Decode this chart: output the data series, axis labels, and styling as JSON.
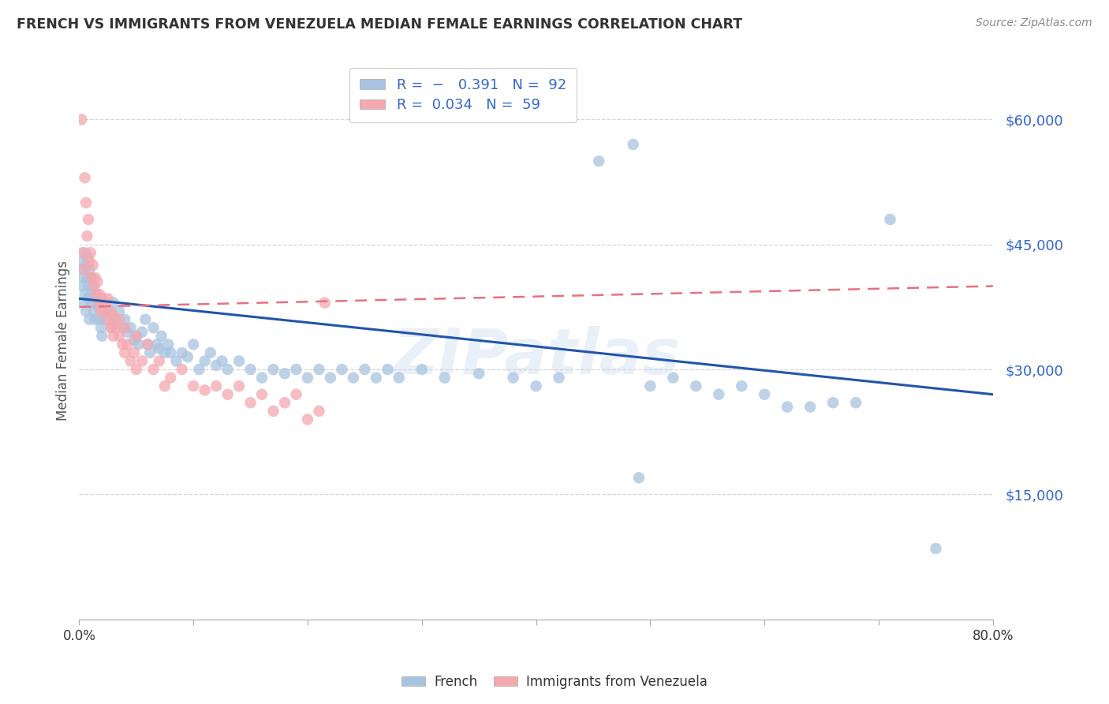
{
  "title": "FRENCH VS IMMIGRANTS FROM VENEZUELA MEDIAN FEMALE EARNINGS CORRELATION CHART",
  "source": "Source: ZipAtlas.com",
  "ylabel": "Median Female Earnings",
  "watermark": "ZIPatlas",
  "ytick_labels": [
    "$15,000",
    "$30,000",
    "$45,000",
    "$60,000"
  ],
  "ytick_values": [
    15000,
    30000,
    45000,
    60000
  ],
  "ymin": 0,
  "ymax": 67000,
  "xmin": 0.0,
  "xmax": 0.8,
  "blue_color": "#A8C4E0",
  "pink_color": "#F4A8B0",
  "line_blue": "#2255AA",
  "line_pink": "#E87080",
  "blue_scatter": [
    [
      0.002,
      42000
    ],
    [
      0.003,
      40000
    ],
    [
      0.003,
      43000
    ],
    [
      0.004,
      41000
    ],
    [
      0.004,
      38000
    ],
    [
      0.005,
      44000
    ],
    [
      0.005,
      39000
    ],
    [
      0.006,
      42500
    ],
    [
      0.006,
      37000
    ],
    [
      0.007,
      41000
    ],
    [
      0.007,
      43500
    ],
    [
      0.008,
      40000
    ],
    [
      0.008,
      38500
    ],
    [
      0.009,
      42000
    ],
    [
      0.009,
      36000
    ],
    [
      0.01,
      41000
    ],
    [
      0.01,
      39000
    ],
    [
      0.011,
      38000
    ],
    [
      0.012,
      40000
    ],
    [
      0.013,
      37000
    ],
    [
      0.014,
      36000
    ],
    [
      0.015,
      39000
    ],
    [
      0.016,
      38000
    ],
    [
      0.017,
      37500
    ],
    [
      0.018,
      36000
    ],
    [
      0.019,
      35000
    ],
    [
      0.02,
      34000
    ],
    [
      0.022,
      36000
    ],
    [
      0.025,
      37000
    ],
    [
      0.028,
      35000
    ],
    [
      0.03,
      38000
    ],
    [
      0.032,
      36000
    ],
    [
      0.035,
      37000
    ],
    [
      0.038,
      35000
    ],
    [
      0.04,
      36000
    ],
    [
      0.042,
      34500
    ],
    [
      0.045,
      35000
    ],
    [
      0.048,
      33500
    ],
    [
      0.05,
      34000
    ],
    [
      0.052,
      33000
    ],
    [
      0.055,
      34500
    ],
    [
      0.058,
      36000
    ],
    [
      0.06,
      33000
    ],
    [
      0.062,
      32000
    ],
    [
      0.065,
      35000
    ],
    [
      0.068,
      33000
    ],
    [
      0.07,
      32500
    ],
    [
      0.072,
      34000
    ],
    [
      0.075,
      32000
    ],
    [
      0.078,
      33000
    ],
    [
      0.08,
      32000
    ],
    [
      0.085,
      31000
    ],
    [
      0.09,
      32000
    ],
    [
      0.095,
      31500
    ],
    [
      0.1,
      33000
    ],
    [
      0.105,
      30000
    ],
    [
      0.11,
      31000
    ],
    [
      0.115,
      32000
    ],
    [
      0.12,
      30500
    ],
    [
      0.125,
      31000
    ],
    [
      0.13,
      30000
    ],
    [
      0.14,
      31000
    ],
    [
      0.15,
      30000
    ],
    [
      0.16,
      29000
    ],
    [
      0.17,
      30000
    ],
    [
      0.18,
      29500
    ],
    [
      0.19,
      30000
    ],
    [
      0.2,
      29000
    ],
    [
      0.21,
      30000
    ],
    [
      0.22,
      29000
    ],
    [
      0.23,
      30000
    ],
    [
      0.24,
      29000
    ],
    [
      0.25,
      30000
    ],
    [
      0.26,
      29000
    ],
    [
      0.27,
      30000
    ],
    [
      0.28,
      29000
    ],
    [
      0.3,
      30000
    ],
    [
      0.32,
      29000
    ],
    [
      0.35,
      29500
    ],
    [
      0.38,
      29000
    ],
    [
      0.4,
      28000
    ],
    [
      0.42,
      29000
    ],
    [
      0.455,
      55000
    ],
    [
      0.485,
      57000
    ],
    [
      0.49,
      17000
    ],
    [
      0.5,
      28000
    ],
    [
      0.52,
      29000
    ],
    [
      0.54,
      28000
    ],
    [
      0.56,
      27000
    ],
    [
      0.58,
      28000
    ],
    [
      0.6,
      27000
    ],
    [
      0.62,
      25500
    ],
    [
      0.64,
      25500
    ],
    [
      0.66,
      26000
    ],
    [
      0.68,
      26000
    ],
    [
      0.71,
      48000
    ],
    [
      0.75,
      8500
    ]
  ],
  "pink_scatter": [
    [
      0.002,
      60000
    ],
    [
      0.005,
      53000
    ],
    [
      0.008,
      48000
    ],
    [
      0.003,
      44000
    ],
    [
      0.004,
      42000
    ],
    [
      0.006,
      50000
    ],
    [
      0.007,
      46000
    ],
    [
      0.009,
      43000
    ],
    [
      0.01,
      44000
    ],
    [
      0.011,
      41000
    ],
    [
      0.012,
      42500
    ],
    [
      0.013,
      40000
    ],
    [
      0.014,
      41000
    ],
    [
      0.015,
      39000
    ],
    [
      0.016,
      40500
    ],
    [
      0.017,
      38000
    ],
    [
      0.018,
      39000
    ],
    [
      0.019,
      37000
    ],
    [
      0.02,
      38500
    ],
    [
      0.022,
      37000
    ],
    [
      0.023,
      38000
    ],
    [
      0.025,
      36000
    ],
    [
      0.027,
      37000
    ],
    [
      0.028,
      35000
    ],
    [
      0.03,
      36500
    ],
    [
      0.03,
      34000
    ],
    [
      0.032,
      35000
    ],
    [
      0.035,
      34000
    ],
    [
      0.035,
      36000
    ],
    [
      0.038,
      33000
    ],
    [
      0.04,
      35000
    ],
    [
      0.04,
      32000
    ],
    [
      0.042,
      33000
    ],
    [
      0.045,
      31000
    ],
    [
      0.048,
      32000
    ],
    [
      0.05,
      30000
    ],
    [
      0.055,
      31000
    ],
    [
      0.06,
      33000
    ],
    [
      0.065,
      30000
    ],
    [
      0.07,
      31000
    ],
    [
      0.075,
      28000
    ],
    [
      0.08,
      29000
    ],
    [
      0.09,
      30000
    ],
    [
      0.1,
      28000
    ],
    [
      0.11,
      27500
    ],
    [
      0.12,
      28000
    ],
    [
      0.13,
      27000
    ],
    [
      0.14,
      28000
    ],
    [
      0.15,
      26000
    ],
    [
      0.16,
      27000
    ],
    [
      0.17,
      25000
    ],
    [
      0.18,
      26000
    ],
    [
      0.19,
      27000
    ],
    [
      0.2,
      24000
    ],
    [
      0.21,
      25000
    ],
    [
      0.215,
      38000
    ],
    [
      0.025,
      38500
    ],
    [
      0.03,
      35500
    ],
    [
      0.05,
      34000
    ]
  ],
  "blue_line_x": [
    0.0,
    0.8
  ],
  "blue_line_y": [
    38500,
    27000
  ],
  "pink_line_x": [
    0.0,
    0.8
  ],
  "pink_line_y": [
    37500,
    40000
  ],
  "background_color": "#FFFFFF",
  "grid_color": "#CCCCCC",
  "legend_text_color": "#3366CC",
  "legend_r_black": "#333333"
}
